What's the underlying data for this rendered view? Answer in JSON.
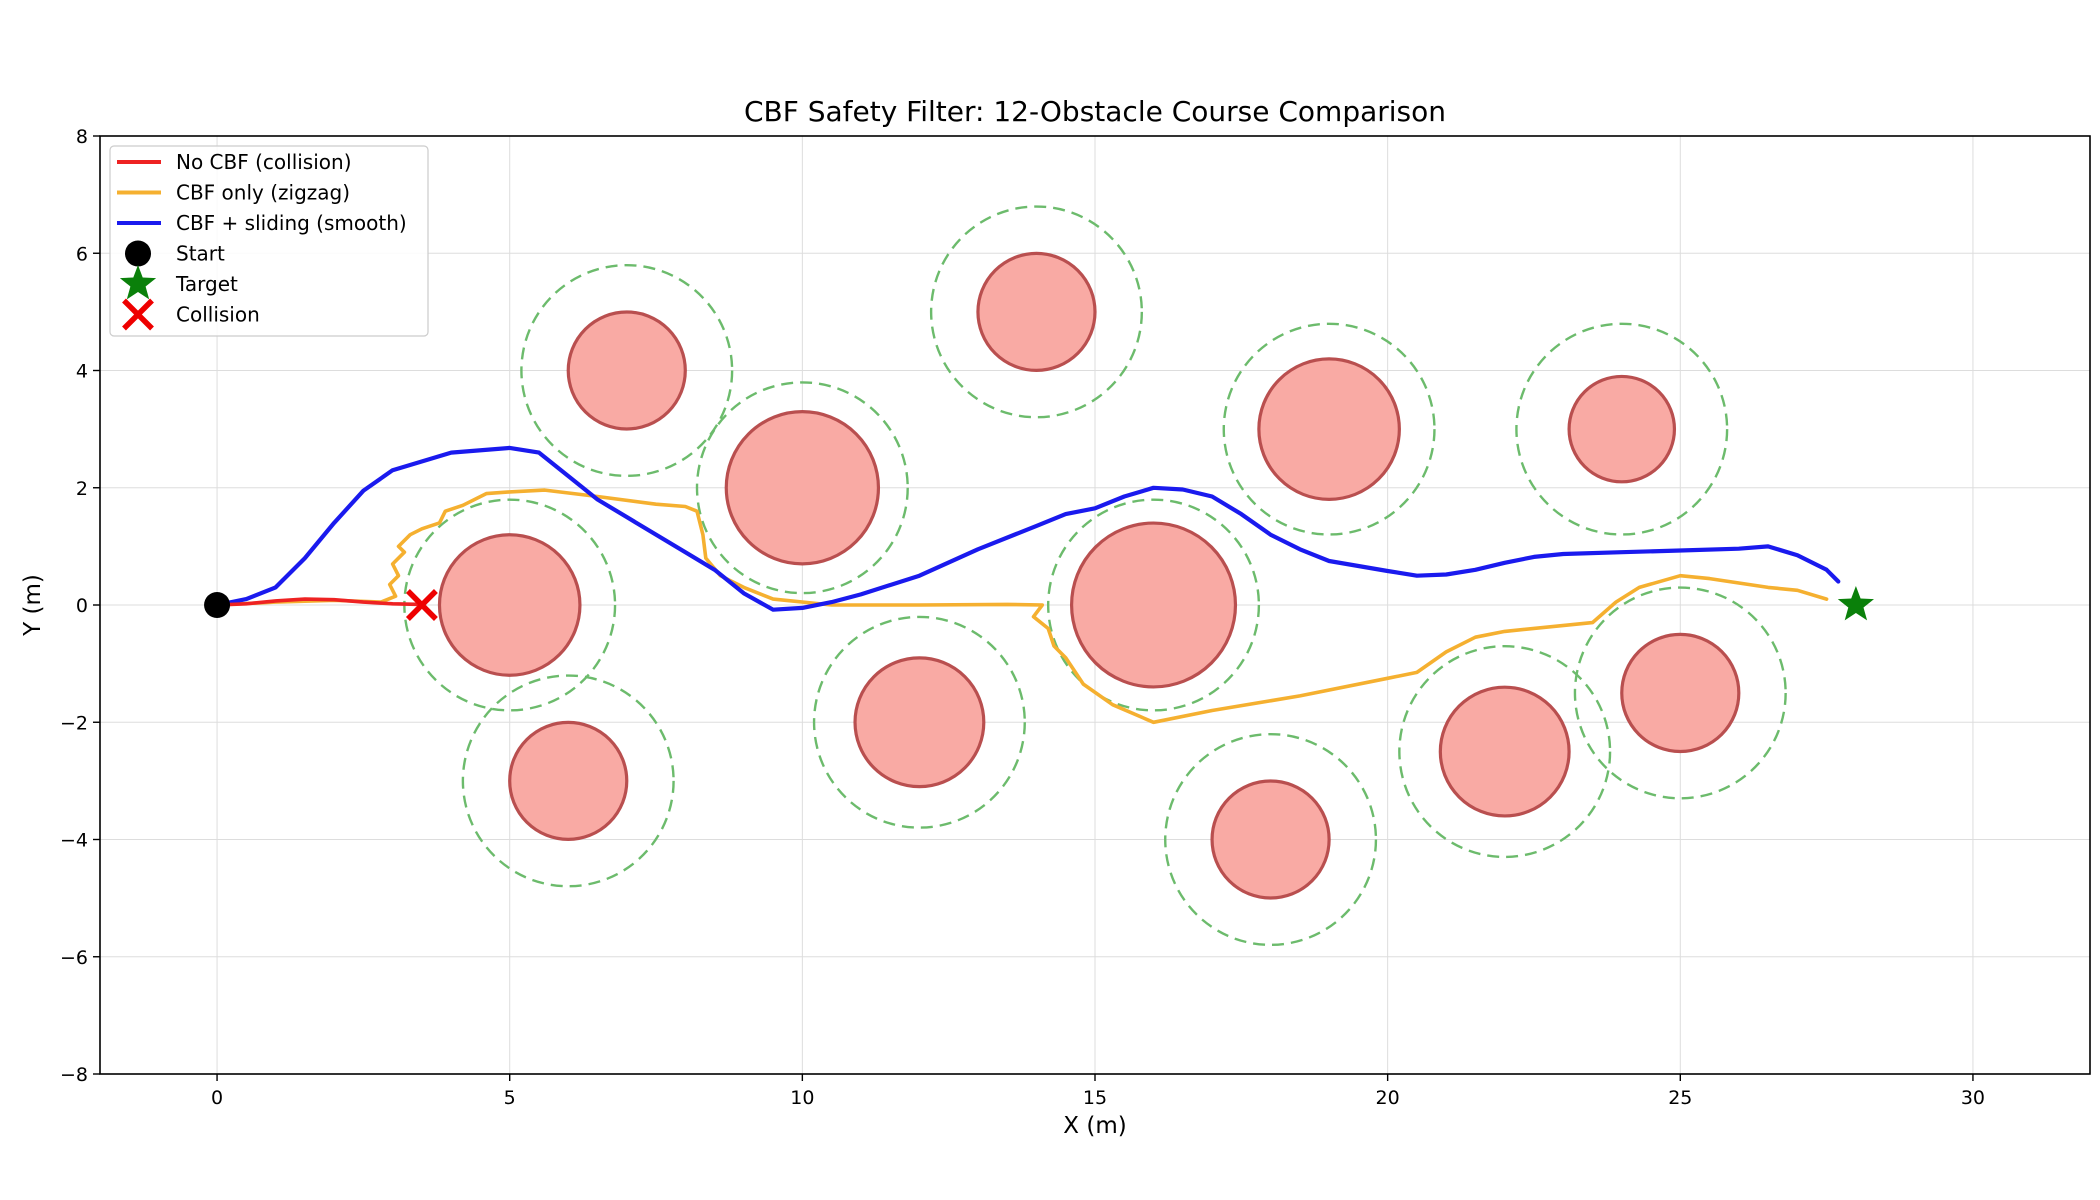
{
  "chart_data": {
    "type": "scatter",
    "title": "CBF Safety Filter: 12-Obstacle Course Comparison",
    "xlabel": "X (m)",
    "ylabel": "Y (m)",
    "xlim": [
      -2,
      32
    ],
    "ylim": [
      -8,
      8
    ],
    "xticks": [
      0,
      5,
      10,
      15,
      20,
      25,
      30
    ],
    "yticks": [
      -8,
      -6,
      -4,
      -2,
      0,
      2,
      4,
      6,
      8
    ],
    "grid": true,
    "legend_position": "upper-left",
    "colors": {
      "no_cbf": "#ee2222",
      "cbf_only": "#f5b030",
      "cbf_sliding": "#1a1aee",
      "obstacle_fill": "#f9aaa4",
      "obstacle_edge": "#b94f4f",
      "safety_margin": "#6cbb6c",
      "start": "#000000",
      "target": "#0a800a",
      "collision": "#ee0000"
    },
    "obstacles": [
      {
        "x": 5,
        "y": 0,
        "r": 1.2,
        "safety_r": 1.8
      },
      {
        "x": 6,
        "y": -3,
        "r": 1.0,
        "safety_r": 1.8
      },
      {
        "x": 7,
        "y": 4,
        "r": 1.0,
        "safety_r": 1.8
      },
      {
        "x": 10,
        "y": 2,
        "r": 1.3,
        "safety_r": 1.8
      },
      {
        "x": 12,
        "y": -2,
        "r": 1.1,
        "safety_r": 1.8
      },
      {
        "x": 14,
        "y": 5,
        "r": 1.0,
        "safety_r": 1.8
      },
      {
        "x": 16,
        "y": 0,
        "r": 1.4,
        "safety_r": 1.8
      },
      {
        "x": 18,
        "y": -4,
        "r": 1.0,
        "safety_r": 1.8
      },
      {
        "x": 19,
        "y": 3,
        "r": 1.2,
        "safety_r": 1.8
      },
      {
        "x": 22,
        "y": -2.5,
        "r": 1.1,
        "safety_r": 1.8
      },
      {
        "x": 24,
        "y": 3,
        "r": 0.9,
        "safety_r": 1.8
      },
      {
        "x": 25,
        "y": -1.5,
        "r": 1.0,
        "safety_r": 1.8
      }
    ],
    "series": [
      {
        "name": "No CBF (collision)",
        "key": "no_cbf",
        "points": [
          [
            0,
            0
          ],
          [
            0.5,
            0.02
          ],
          [
            1,
            0.07
          ],
          [
            1.5,
            0.1
          ],
          [
            2,
            0.09
          ],
          [
            2.5,
            0.05
          ],
          [
            3,
            0.02
          ],
          [
            3.5,
            0.01
          ]
        ]
      },
      {
        "name": "CBF only (zigzag)",
        "key": "cbf_only",
        "points": [
          [
            0,
            0
          ],
          [
            1,
            0.05
          ],
          [
            2,
            0.08
          ],
          [
            2.8,
            0.05
          ],
          [
            3.05,
            0.15
          ],
          [
            2.95,
            0.35
          ],
          [
            3.1,
            0.5
          ],
          [
            3.0,
            0.7
          ],
          [
            3.2,
            0.9
          ],
          [
            3.1,
            1.0
          ],
          [
            3.3,
            1.2
          ],
          [
            3.5,
            1.3
          ],
          [
            3.8,
            1.4
          ],
          [
            3.9,
            1.6
          ],
          [
            4.2,
            1.7
          ],
          [
            4.6,
            1.9
          ],
          [
            5.0,
            1.93
          ],
          [
            5.6,
            1.96
          ],
          [
            6.5,
            1.85
          ],
          [
            7.5,
            1.72
          ],
          [
            8.0,
            1.68
          ],
          [
            8.2,
            1.6
          ],
          [
            8.3,
            1.2
          ],
          [
            8.35,
            0.8
          ],
          [
            8.6,
            0.5
          ],
          [
            9,
            0.3
          ],
          [
            9.5,
            0.1
          ],
          [
            10.5,
            0.0
          ],
          [
            12,
            0.0
          ],
          [
            13.5,
            0.01
          ],
          [
            14.1,
            0.0
          ],
          [
            13.95,
            -0.2
          ],
          [
            14.2,
            -0.4
          ],
          [
            14.3,
            -0.7
          ],
          [
            14.5,
            -0.9
          ],
          [
            14.8,
            -1.35
          ],
          [
            15.3,
            -1.7
          ],
          [
            16,
            -2.0
          ],
          [
            17,
            -1.8
          ],
          [
            18.5,
            -1.55
          ],
          [
            20,
            -1.25
          ],
          [
            20.5,
            -1.15
          ],
          [
            21,
            -0.8
          ],
          [
            21.5,
            -0.55
          ],
          [
            22,
            -0.45
          ],
          [
            23.5,
            -0.3
          ],
          [
            23.9,
            0.05
          ],
          [
            24.3,
            0.3
          ],
          [
            25,
            0.5
          ],
          [
            25.5,
            0.45
          ],
          [
            26.5,
            0.3
          ],
          [
            27,
            0.25
          ],
          [
            27.5,
            0.1
          ]
        ]
      },
      {
        "name": "CBF + sliding (smooth)",
        "key": "cbf_sliding",
        "points": [
          [
            0,
            0
          ],
          [
            0.5,
            0.1
          ],
          [
            1,
            0.3
          ],
          [
            1.5,
            0.8
          ],
          [
            2,
            1.4
          ],
          [
            2.5,
            1.95
          ],
          [
            3,
            2.3
          ],
          [
            4,
            2.6
          ],
          [
            5,
            2.68
          ],
          [
            5.5,
            2.6
          ],
          [
            6,
            2.2
          ],
          [
            6.5,
            1.8
          ],
          [
            7,
            1.5
          ],
          [
            8,
            0.9
          ],
          [
            8.5,
            0.6
          ],
          [
            9,
            0.2
          ],
          [
            9.5,
            -0.08
          ],
          [
            10,
            -0.05
          ],
          [
            10.5,
            0.05
          ],
          [
            11,
            0.18
          ],
          [
            12,
            0.5
          ],
          [
            13,
            0.95
          ],
          [
            14,
            1.35
          ],
          [
            14.5,
            1.55
          ],
          [
            15,
            1.65
          ],
          [
            15.5,
            1.85
          ],
          [
            16,
            2.0
          ],
          [
            16.5,
            1.97
          ],
          [
            17,
            1.85
          ],
          [
            17.5,
            1.55
          ],
          [
            18,
            1.2
          ],
          [
            18.5,
            0.95
          ],
          [
            19,
            0.75
          ],
          [
            20,
            0.58
          ],
          [
            20.5,
            0.5
          ],
          [
            21,
            0.52
          ],
          [
            21.5,
            0.6
          ],
          [
            22,
            0.72
          ],
          [
            22.5,
            0.82
          ],
          [
            23,
            0.87
          ],
          [
            24,
            0.9
          ],
          [
            25,
            0.93
          ],
          [
            26,
            0.96
          ],
          [
            26.5,
            1.0
          ],
          [
            27,
            0.85
          ],
          [
            27.5,
            0.6
          ],
          [
            27.7,
            0.4
          ]
        ]
      }
    ],
    "markers": {
      "start": {
        "name": "Start",
        "x": 0,
        "y": 0
      },
      "target": {
        "name": "Target",
        "x": 28,
        "y": 0
      },
      "collision": {
        "name": "Collision",
        "x": 3.5,
        "y": 0
      }
    }
  }
}
